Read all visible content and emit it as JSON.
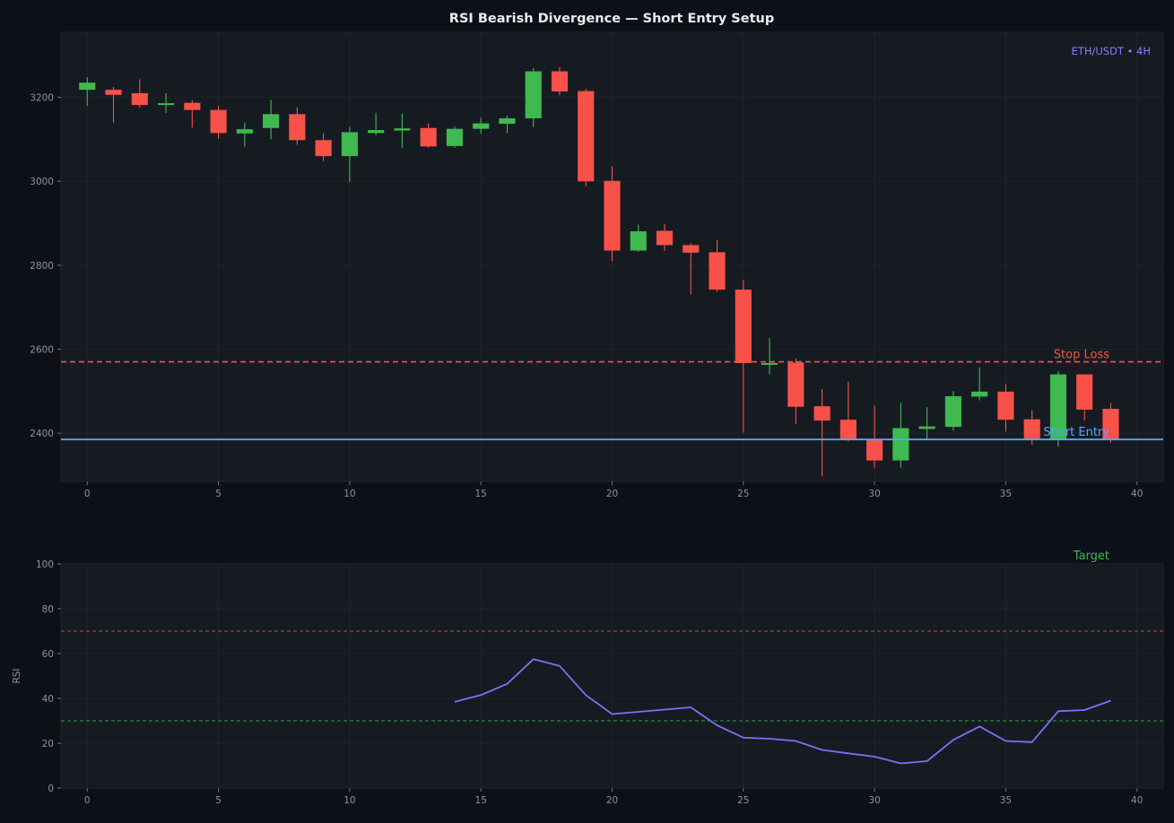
{
  "chart_data": [
    {
      "type": "candlestick",
      "title": "RSI Bearish Divergence — Short Entry Setup",
      "subtitle": "ETH/USDT • 4H",
      "xlabel": "",
      "ylabel": "",
      "xlim": [
        -1,
        41
      ],
      "ylim": [
        2285,
        3355
      ],
      "x_ticks": [
        0,
        5,
        10,
        15,
        20,
        25,
        30,
        35,
        40
      ],
      "y_ticks": [
        2400,
        2600,
        2800,
        3000,
        3200
      ],
      "grid": true,
      "colors": {
        "up": "#3fb950",
        "down": "#f85149",
        "stop_loss": "#f85149",
        "entry": "#58a6ff",
        "target": "#3fb950",
        "subtitle": "#8b7cf6"
      },
      "candles": [
        {
          "x": 0,
          "open": 3218,
          "high": 3248,
          "low": 3180,
          "close": 3235
        },
        {
          "x": 1,
          "open": 3218,
          "high": 3225,
          "low": 3140,
          "close": 3206
        },
        {
          "x": 2,
          "open": 3210,
          "high": 3243,
          "low": 3175,
          "close": 3182
        },
        {
          "x": 3,
          "open": 3182,
          "high": 3210,
          "low": 3163,
          "close": 3186
        },
        {
          "x": 4,
          "open": 3187,
          "high": 3193,
          "low": 3128,
          "close": 3170
        },
        {
          "x": 5,
          "open": 3170,
          "high": 3180,
          "low": 3101,
          "close": 3115
        },
        {
          "x": 6,
          "open": 3114,
          "high": 3140,
          "low": 3083,
          "close": 3124
        },
        {
          "x": 7,
          "open": 3127,
          "high": 3194,
          "low": 3100,
          "close": 3160
        },
        {
          "x": 8,
          "open": 3160,
          "high": 3176,
          "low": 3087,
          "close": 3098
        },
        {
          "x": 9,
          "open": 3098,
          "high": 3114,
          "low": 3048,
          "close": 3060
        },
        {
          "x": 10,
          "open": 3060,
          "high": 3130,
          "low": 2998,
          "close": 3117
        },
        {
          "x": 11,
          "open": 3115,
          "high": 3163,
          "low": 3110,
          "close": 3122
        },
        {
          "x": 12,
          "open": 3121,
          "high": 3161,
          "low": 3080,
          "close": 3126
        },
        {
          "x": 13,
          "open": 3127,
          "high": 3138,
          "low": 3080,
          "close": 3083
        },
        {
          "x": 14,
          "open": 3084,
          "high": 3130,
          "low": 3080,
          "close": 3125
        },
        {
          "x": 15,
          "open": 3125,
          "high": 3152,
          "low": 3113,
          "close": 3138
        },
        {
          "x": 16,
          "open": 3137,
          "high": 3156,
          "low": 3115,
          "close": 3150
        },
        {
          "x": 17,
          "open": 3150,
          "high": 3270,
          "low": 3129,
          "close": 3262
        },
        {
          "x": 18,
          "open": 3262,
          "high": 3272,
          "low": 3205,
          "close": 3214
        },
        {
          "x": 19,
          "open": 3215,
          "high": 3220,
          "low": 2988,
          "close": 3000
        },
        {
          "x": 20,
          "open": 3001,
          "high": 3036,
          "low": 2810,
          "close": 2835
        },
        {
          "x": 21,
          "open": 2835,
          "high": 2897,
          "low": 2832,
          "close": 2881
        },
        {
          "x": 22,
          "open": 2882,
          "high": 2898,
          "low": 2834,
          "close": 2848
        },
        {
          "x": 23,
          "open": 2848,
          "high": 2853,
          "low": 2730,
          "close": 2830
        },
        {
          "x": 24,
          "open": 2831,
          "high": 2860,
          "low": 2737,
          "close": 2742
        },
        {
          "x": 25,
          "open": 2742,
          "high": 2765,
          "low": 2401,
          "close": 2567
        },
        {
          "x": 26,
          "open": 2567,
          "high": 2627,
          "low": 2540,
          "close": 2567
        },
        {
          "x": 27,
          "open": 2568,
          "high": 2578,
          "low": 2422,
          "close": 2463
        },
        {
          "x": 28,
          "open": 2464,
          "high": 2505,
          "low": 2297,
          "close": 2430
        },
        {
          "x": 29,
          "open": 2432,
          "high": 2522,
          "low": 2380,
          "close": 2385
        },
        {
          "x": 30,
          "open": 2385,
          "high": 2465,
          "low": 2318,
          "close": 2335
        },
        {
          "x": 31,
          "open": 2335,
          "high": 2472,
          "low": 2318,
          "close": 2412
        },
        {
          "x": 32,
          "open": 2410,
          "high": 2462,
          "low": 2387,
          "close": 2416
        },
        {
          "x": 33,
          "open": 2415,
          "high": 2500,
          "low": 2406,
          "close": 2488
        },
        {
          "x": 34,
          "open": 2487,
          "high": 2557,
          "low": 2478,
          "close": 2499
        },
        {
          "x": 35,
          "open": 2499,
          "high": 2517,
          "low": 2404,
          "close": 2432
        },
        {
          "x": 36,
          "open": 2433,
          "high": 2455,
          "low": 2373,
          "close": 2384
        },
        {
          "x": 37,
          "open": 2386,
          "high": 2548,
          "low": 2368,
          "close": 2540
        },
        {
          "x": 38,
          "open": 2540,
          "high": 2540,
          "low": 2430,
          "close": 2456
        },
        {
          "x": 39,
          "open": 2458,
          "high": 2472,
          "low": 2378,
          "close": 2386
        }
      ],
      "levels": [
        {
          "name": "Stop Loss",
          "value": 2570,
          "style": "dashed",
          "color": "#f85149"
        },
        {
          "name": "Short Entry",
          "value": 2385,
          "style": "solid",
          "color": "#58a6ff"
        },
        {
          "name": "Target",
          "value": null,
          "style": "label",
          "color": "#3fb950"
        }
      ]
    },
    {
      "type": "line",
      "title": "",
      "xlabel": "",
      "ylabel": "RSI",
      "xlim": [
        -1,
        41
      ],
      "ylim": [
        0,
        100
      ],
      "x_ticks": [
        0,
        5,
        10,
        15,
        20,
        25,
        30,
        35,
        40
      ],
      "y_ticks": [
        0,
        20,
        40,
        60,
        80,
        100
      ],
      "grid": true,
      "levels": [
        {
          "value": 70,
          "style": "dashed",
          "color": "#f85149"
        },
        {
          "value": 30,
          "style": "dashed",
          "color": "#3fb950"
        }
      ],
      "series": [
        {
          "name": "",
          "color": "#7c6ff6",
          "x": [
            14,
            15,
            16,
            17,
            18,
            19,
            20,
            21,
            22,
            23,
            24,
            25,
            26,
            27,
            28,
            29,
            30,
            31,
            32,
            33,
            34,
            35,
            36,
            37,
            38,
            39
          ],
          "values": [
            38.5,
            41.5,
            46.5,
            57.5,
            54.5,
            41.5,
            33,
            34,
            35,
            36,
            28,
            22.5,
            22,
            21,
            17,
            15.5,
            14,
            11,
            12,
            21.5,
            27.5,
            21,
            20.5,
            34.3,
            34.8,
            39
          ]
        }
      ]
    }
  ]
}
